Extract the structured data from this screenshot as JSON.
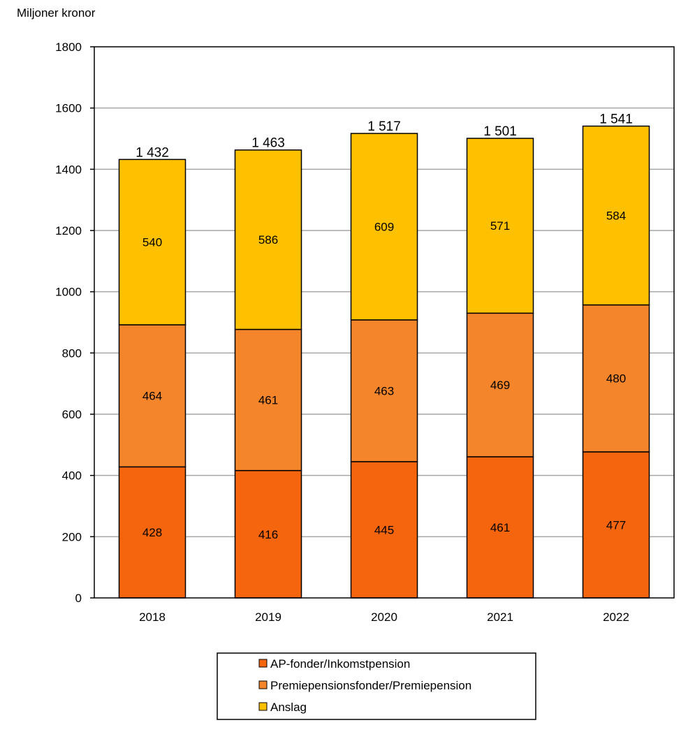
{
  "chart_data": {
    "type": "bar",
    "stacked": true,
    "title": "",
    "xlabel": "",
    "ylabel": "Miljoner kronor",
    "ylim": [
      0,
      1800
    ],
    "yticks": [
      0,
      200,
      400,
      600,
      800,
      1000,
      1200,
      1400,
      1600,
      1800
    ],
    "grid": true,
    "legend_position": "bottom",
    "categories": [
      "2018",
      "2019",
      "2020",
      "2021",
      "2022"
    ],
    "series": [
      {
        "name": "AP-fonder/Inkomstpension",
        "color": "#F5650D",
        "values": [
          428,
          416,
          445,
          461,
          477
        ],
        "labels": [
          "428",
          "416",
          "445",
          "461",
          "477"
        ]
      },
      {
        "name": "Premiepensionsfonder/Premiepension",
        "color": "#F5852B",
        "values": [
          464,
          461,
          463,
          469,
          480
        ],
        "labels": [
          "464",
          "461",
          "463",
          "469",
          "480"
        ]
      },
      {
        "name": "Anslag",
        "color": "#FFC000",
        "values": [
          540,
          586,
          609,
          571,
          584
        ],
        "labels": [
          "540",
          "586",
          "609",
          "571",
          "584"
        ]
      }
    ],
    "totals": [
      1432,
      1463,
      1517,
      1501,
      1541
    ],
    "total_labels": [
      "1 432",
      "1 463",
      "1 517",
      "1 501",
      "1 541"
    ]
  }
}
